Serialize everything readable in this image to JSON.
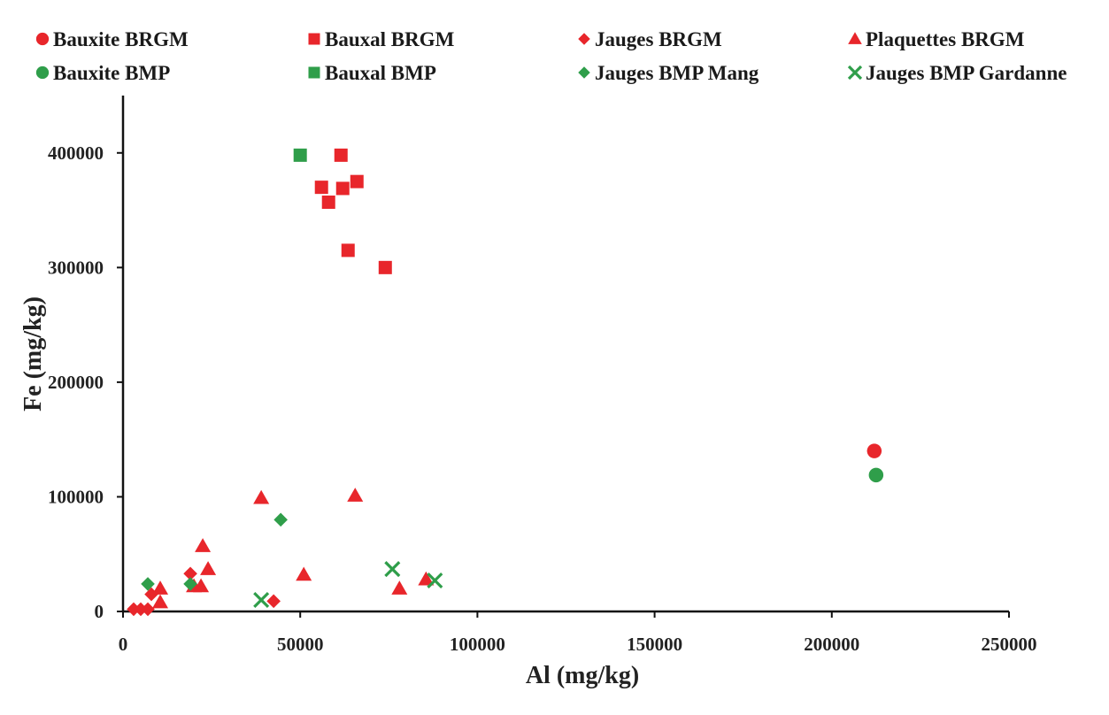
{
  "chart_data": {
    "type": "scatter",
    "xlabel": "Al (mg/kg)",
    "ylabel": "Fe (mg/kg)",
    "xlim": [
      0,
      250000
    ],
    "ylim": [
      0,
      450000
    ],
    "x_ticks": [
      0,
      50000,
      100000,
      150000,
      200000,
      250000
    ],
    "y_ticks": [
      0,
      100000,
      200000,
      300000,
      400000
    ],
    "grid": false,
    "legend_position": "top",
    "series": [
      {
        "name": "Bauxite BRGM",
        "marker": "circle",
        "color": "#e8262b",
        "points": [
          [
            212000,
            140000
          ]
        ]
      },
      {
        "name": "Bauxal BRGM",
        "marker": "square",
        "color": "#e8262b",
        "points": [
          [
            56000,
            370000
          ],
          [
            58000,
            357000
          ],
          [
            61500,
            398000
          ],
          [
            62000,
            369000
          ],
          [
            63500,
            315000
          ],
          [
            66000,
            375000
          ],
          [
            74000,
            300000
          ]
        ]
      },
      {
        "name": "Jauges BRGM",
        "marker": "diamond",
        "color": "#e8262b",
        "points": [
          [
            3000,
            2000
          ],
          [
            5000,
            2000
          ],
          [
            7000,
            2000
          ],
          [
            8000,
            15000
          ],
          [
            19000,
            33000
          ],
          [
            42500,
            9000
          ]
        ]
      },
      {
        "name": "Plaquettes BRGM",
        "marker": "triangle",
        "color": "#e8262b",
        "points": [
          [
            10500,
            8000
          ],
          [
            10500,
            20000
          ],
          [
            20000,
            22000
          ],
          [
            22000,
            22000
          ],
          [
            22500,
            57000
          ],
          [
            24000,
            37000
          ],
          [
            39000,
            99000
          ],
          [
            51000,
            32000
          ],
          [
            65500,
            101000
          ],
          [
            78000,
            20000
          ],
          [
            85500,
            28000
          ]
        ]
      },
      {
        "name": "Bauxite BMP",
        "marker": "circle",
        "color": "#2f9e4a",
        "points": [
          [
            212500,
            119000
          ]
        ]
      },
      {
        "name": "Bauxal BMP",
        "marker": "square",
        "color": "#2f9e4a",
        "points": [
          [
            50000,
            398000
          ]
        ]
      },
      {
        "name": "Jauges BMP Mang",
        "marker": "diamond",
        "color": "#2f9e4a",
        "points": [
          [
            7000,
            24000
          ],
          [
            19000,
            24000
          ],
          [
            44500,
            80000
          ]
        ]
      },
      {
        "name": "Jauges BMP Gardanne",
        "marker": "x",
        "color": "#2f9e4a",
        "points": [
          [
            39000,
            10000
          ],
          [
            76000,
            37000
          ],
          [
            88000,
            27000
          ]
        ]
      }
    ]
  }
}
